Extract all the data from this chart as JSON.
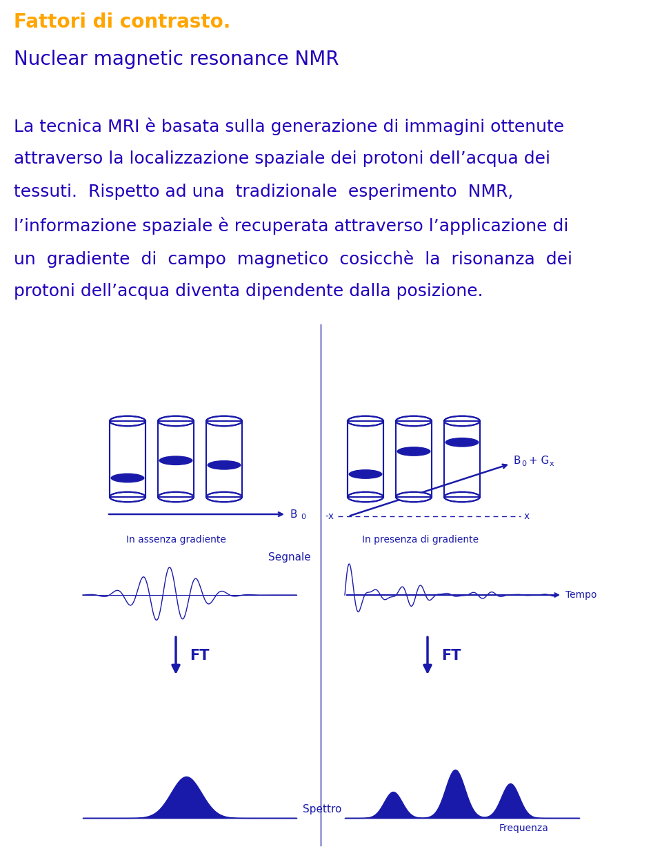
{
  "bg_color": "#ffffff",
  "title1": "Fattori di contrasto.",
  "title1_color": "#FFA500",
  "title2": "Nuclear magnetic resonance NMR",
  "title2_color": "#2200BB",
  "body_color": "#2200BB",
  "diagram_color": "#1a1aaa",
  "body_lines": [
    "La tecnica MRI è basata sulla generazione di immagini ottenute",
    "attraverso la localizzazione spaziale dei protoni dell’acqua dei",
    "tessuti.  Rispetto ad una  tradizionale  esperimento  NMR,",
    "l’informazione spaziale è recuperata attraverso l’applicazione di",
    "un  gradiente  di  campo  magnetico  cosicchè  la  risonanza  dei",
    "protoni dell’acqua diventa dipendente dalla posizione."
  ],
  "label_assenza": "In assenza gradiente",
  "label_presenza": "In presenza di gradiente",
  "label_segnale": "Segnale",
  "label_tempo": "Tempo",
  "label_FT": "FT",
  "label_spettro": "Spettro",
  "label_frequenza": "Frequenza",
  "label_neg_x": "-x",
  "label_pos_x": "x",
  "label_B0": "B",
  "label_B0sub": "0",
  "label_B0Gx": "B",
  "label_B0Gx_rest": " + G",
  "title1_fontsize": 20,
  "title2_fontsize": 20,
  "body_fontsize": 18,
  "diagram_fontsize": 11
}
